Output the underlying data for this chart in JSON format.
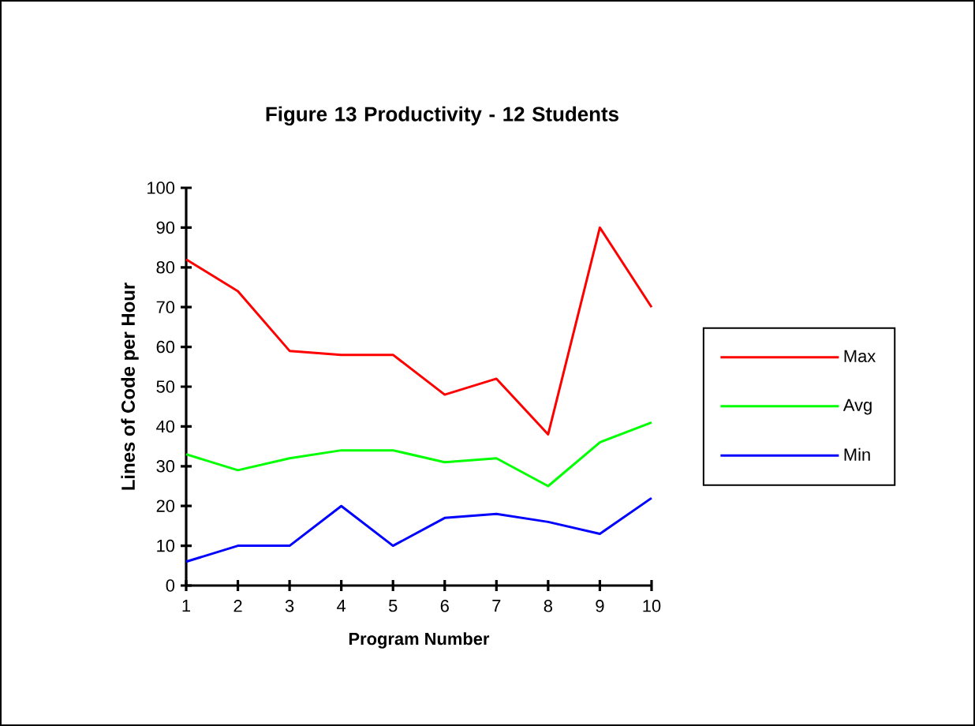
{
  "chart_data": {
    "type": "line",
    "title": "Figure 13  Productivity - 12 Students",
    "xlabel": "Program Number",
    "ylabel": "Lines of Code per Hour",
    "x": [
      1,
      2,
      3,
      4,
      5,
      6,
      7,
      8,
      9,
      10
    ],
    "series": [
      {
        "name": "Max",
        "color": "#ff0000",
        "values": [
          82,
          74,
          59,
          58,
          58,
          48,
          52,
          38,
          90,
          70
        ]
      },
      {
        "name": "Avg",
        "color": "#00ff00",
        "values": [
          33,
          29,
          32,
          34,
          34,
          31,
          32,
          25,
          36,
          41
        ]
      },
      {
        "name": "Min",
        "color": "#0000ff",
        "values": [
          6,
          10,
          10,
          20,
          10,
          17,
          18,
          16,
          13,
          22
        ]
      }
    ],
    "xlim": [
      1,
      10
    ],
    "ylim": [
      0,
      100
    ],
    "xticks": [
      1,
      2,
      3,
      4,
      5,
      6,
      7,
      8,
      9,
      10
    ],
    "yticks": [
      0,
      10,
      20,
      30,
      40,
      50,
      60,
      70,
      80,
      90,
      100
    ],
    "legend": "right",
    "grid": false,
    "marker": "none",
    "line_style": "solid"
  }
}
